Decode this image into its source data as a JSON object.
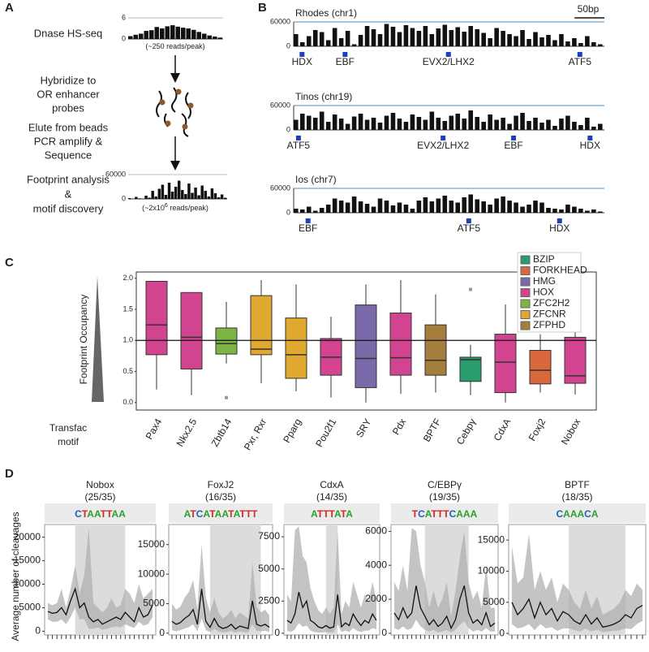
{
  "letters": {
    "a": "A",
    "b": "B",
    "c": "C",
    "d": "D"
  },
  "panel_a": {
    "steps": [
      [
        "Dnase HS-seq"
      ],
      [
        "Hybridize to",
        "OR enhancer",
        "probes"
      ],
      [
        "Elute from beads",
        "PCR amplify &",
        "Sequence"
      ],
      [
        "Footprint analysis",
        "&",
        "motif discovery"
      ]
    ],
    "tracks": [
      {
        "ylim": [
          0,
          6
        ],
        "yticks": [
          0,
          6
        ],
        "values": [
          0.8,
          1.2,
          1.5,
          2.3,
          2.5,
          3.4,
          3.0,
          3.6,
          3.9,
          3.5,
          3.2,
          3.0,
          2.6,
          2.0,
          1.5,
          1.0,
          0.7,
          0.4
        ],
        "caption": {
          "text": "(~250 reads/peak)"
        }
      },
      {
        "ylim": [
          0,
          60000
        ],
        "yticks": [
          0,
          60000
        ],
        "values": [
          2000,
          0,
          5000,
          1500,
          0,
          8000,
          3000,
          20000,
          6000,
          25000,
          35000,
          10000,
          40000,
          18000,
          30000,
          45000,
          22000,
          12000,
          38000,
          15000,
          28000,
          9000,
          33000,
          20000,
          6000,
          26000,
          14000,
          4000,
          11000,
          3000
        ],
        "caption": {
          "text": "(~2x10",
          "sup": "6",
          "tail": " reads/peak)"
        }
      }
    ]
  },
  "panel_b": {
    "ylim": [
      0,
      60000
    ],
    "yticks": [
      0,
      60000
    ],
    "xlim": [
      0,
      520
    ],
    "scalebar": {
      "value": 50,
      "label": "50bp"
    },
    "tracks": [
      {
        "title": "Rhodes (chr1)",
        "values": [
          30000,
          10000,
          25000,
          40000,
          35000,
          15000,
          45000,
          20000,
          38000,
          5000,
          28000,
          50000,
          42000,
          30000,
          55000,
          48000,
          35000,
          52000,
          45000,
          38000,
          50000,
          30000,
          44000,
          53000,
          40000,
          47000,
          36000,
          50000,
          42000,
          33000,
          20000,
          45000,
          38000,
          30000,
          25000,
          40000,
          18000,
          35000,
          22000,
          28000,
          15000,
          30000,
          12000,
          20000,
          8000,
          25000,
          10000,
          5000
        ],
        "motifs": [
          {
            "name": "HDX",
            "pos": 14
          },
          {
            "name": "EBF",
            "pos": 86
          },
          {
            "name": "EVX2/LHX2",
            "pos": 259
          },
          {
            "name": "ATF5",
            "pos": 479
          }
        ]
      },
      {
        "title": "Tinos (chr19)",
        "values": [
          25000,
          40000,
          35000,
          30000,
          45000,
          20000,
          38000,
          28000,
          15000,
          33000,
          40000,
          25000,
          30000,
          18000,
          35000,
          42000,
          28000,
          20000,
          38000,
          32000,
          25000,
          45000,
          30000,
          22000,
          35000,
          40000,
          28000,
          48000,
          32000,
          20000,
          38000,
          25000,
          30000,
          15000,
          35000,
          42000,
          22000,
          30000,
          18000,
          25000,
          10000,
          28000,
          35000,
          20000,
          12000,
          30000,
          8000,
          15000
        ],
        "motifs": [
          {
            "name": "ATF5",
            "pos": 8
          },
          {
            "name": "EVX2/LHX2",
            "pos": 250
          },
          {
            "name": "EBF",
            "pos": 368
          },
          {
            "name": "HDX",
            "pos": 496
          }
        ]
      },
      {
        "title": "Ios (chr7)",
        "values": [
          10000,
          8000,
          15000,
          5000,
          12000,
          20000,
          35000,
          30000,
          25000,
          40000,
          28000,
          22000,
          15000,
          35000,
          30000,
          18000,
          25000,
          20000,
          10000,
          30000,
          38000,
          28000,
          35000,
          42000,
          30000,
          25000,
          38000,
          45000,
          33000,
          28000,
          20000,
          35000,
          40000,
          30000,
          25000,
          15000,
          20000,
          30000,
          25000,
          12000,
          10000,
          8000,
          20000,
          15000,
          10000,
          5000,
          8000,
          3000
        ],
        "motifs": [
          {
            "name": "EBF",
            "pos": 24
          },
          {
            "name": "ATF5",
            "pos": 293
          },
          {
            "name": "HDX",
            "pos": 445
          }
        ]
      }
    ]
  },
  "panel_d": {
    "ylabel": "Average number of cleavages"
  },
  "chart_data": [
    {
      "type": "box",
      "ylabel": "Footprint Occupancy",
      "xlabel": [
        "Transfac",
        "motif"
      ],
      "ylim": [
        -0.12,
        2.1
      ],
      "yticks": [
        {
          "value": 0,
          "label": "0.0"
        },
        {
          "value": 0.5,
          "label": "0.5"
        },
        {
          "value": 1,
          "label": "1.0"
        },
        {
          "value": 1.5,
          "label": "1.5"
        },
        {
          "value": 2,
          "label": "2.0"
        }
      ],
      "hline": 1.0,
      "boxes": [
        {
          "name": "Pax4",
          "color": "#d2448f",
          "min": 0.21,
          "q1": 0.77,
          "median": 1.25,
          "q3": 1.95,
          "max": 1.95,
          "outliers": []
        },
        {
          "name": "Nkx2.5",
          "color": "#d2448f",
          "min": 0.12,
          "q1": 0.54,
          "median": 1.05,
          "q3": 1.77,
          "max": 1.77,
          "outliers": []
        },
        {
          "name": "Zbtb14",
          "color": "#7db544",
          "min": 0.63,
          "q1": 0.78,
          "median": 0.95,
          "q3": 1.2,
          "max": 1.62,
          "outliers": [
            0.08
          ]
        },
        {
          "name": "Pxr, Rxr",
          "color": "#e0a82e",
          "min": 0.31,
          "q1": 0.77,
          "median": 0.86,
          "q3": 1.72,
          "max": 1.97,
          "outliers": []
        },
        {
          "name": "Pparg",
          "color": "#e0a82e",
          "min": 0.18,
          "q1": 0.39,
          "median": 0.77,
          "q3": 1.36,
          "max": 1.9,
          "outliers": []
        },
        {
          "name": "Pou2f1",
          "color": "#d2448f",
          "min": 0.08,
          "q1": 0.44,
          "median": 0.73,
          "q3": 1.03,
          "max": 1.38,
          "outliers": []
        },
        {
          "name": "SRY",
          "color": "#7a6aaa",
          "min": 0.0,
          "q1": 0.24,
          "median": 0.71,
          "q3": 1.57,
          "max": 1.9,
          "outliers": []
        },
        {
          "name": "Pdx",
          "color": "#d2448f",
          "min": 0.14,
          "q1": 0.44,
          "median": 0.72,
          "q3": 1.44,
          "max": 1.97,
          "outliers": []
        },
        {
          "name": "BPTF",
          "color": "#a57d3c",
          "min": 0.16,
          "q1": 0.44,
          "median": 0.68,
          "q3": 1.25,
          "max": 1.74,
          "outliers": []
        },
        {
          "name": "Cebpγ",
          "color": "#2b9c6e",
          "min": 0.12,
          "q1": 0.34,
          "median": 0.69,
          "q3": 0.73,
          "max": 0.93,
          "outliers": [
            1.82
          ]
        },
        {
          "name": "CdxA",
          "color": "#d2448f",
          "min": 0.0,
          "q1": 0.16,
          "median": 0.65,
          "q3": 1.1,
          "max": 1.58,
          "outliers": []
        },
        {
          "name": "Foxj2",
          "color": "#d9683c",
          "min": 0.16,
          "q1": 0.3,
          "median": 0.52,
          "q3": 0.84,
          "max": 1.1,
          "outliers": []
        },
        {
          "name": "Nobox",
          "color": "#d2448f",
          "min": 0.13,
          "q1": 0.31,
          "median": 0.43,
          "q3": 1.05,
          "max": 1.6,
          "outliers": []
        }
      ],
      "legend": [
        {
          "name": "BZIP",
          "color": "#2b9c6e"
        },
        {
          "name": "FORKHEAD",
          "color": "#d9683c"
        },
        {
          "name": "HMG",
          "color": "#7a6aaa"
        },
        {
          "name": "HOX",
          "color": "#d2448f"
        },
        {
          "name": "ZFC2H2",
          "color": "#7db544"
        },
        {
          "name": "ZFCNR",
          "color": "#e0a82e"
        },
        {
          "name": "ZFPHD",
          "color": "#a57d3c"
        }
      ]
    },
    {
      "type": "line",
      "title": "Nobox",
      "subtitle": "(25/35)",
      "logo": "CTAATTAA",
      "ylim": [
        -800,
        22700
      ],
      "yticks": [
        0,
        5000,
        10000,
        15000,
        20000
      ],
      "highlight": [
        6,
        17
      ],
      "color": "#111111",
      "band_color": "#b0b0b0",
      "values": [
        4200,
        3800,
        4000,
        5000,
        3500,
        6500,
        9000,
        5000,
        6000,
        3000,
        2000,
        2500,
        1500,
        2000,
        2500,
        3000,
        2500,
        4000,
        3000,
        2000,
        5000,
        3000,
        3500,
        5500
      ],
      "upper": [
        6000,
        5500,
        6000,
        9000,
        5000,
        9000,
        14000,
        8000,
        12000,
        22000,
        6000,
        5000,
        4000,
        5000,
        7000,
        5000,
        5500,
        9000,
        8000,
        6000,
        10000,
        7000,
        8000,
        9000
      ],
      "lower": [
        2500,
        2000,
        2000,
        2500,
        1500,
        3000,
        5000,
        2500,
        2500,
        500,
        500,
        800,
        300,
        500,
        800,
        1000,
        800,
        1500,
        1000,
        700,
        2000,
        1200,
        1500,
        3000
      ]
    },
    {
      "type": "line",
      "title": "FoxJ2",
      "subtitle": "(16/35)",
      "logo": "ATCATAATATTT",
      "ylim": [
        -300,
        18400
      ],
      "yticks": [
        0,
        5000,
        10000,
        15000
      ],
      "highlight": [
        9,
        21
      ],
      "color": "#111111",
      "band_color": "#b0b0b0",
      "values": [
        2000,
        1500,
        1800,
        2500,
        3000,
        4000,
        1500,
        7500,
        2000,
        1000,
        2500,
        1200,
        800,
        1000,
        1500,
        700,
        1200,
        1000,
        800,
        5500,
        1500,
        1200,
        1500,
        1000
      ],
      "upper": [
        5000,
        4000,
        4500,
        6000,
        7000,
        9000,
        4000,
        15000,
        6000,
        3500,
        6000,
        3500,
        2500,
        3000,
        4000,
        2500,
        3500,
        3000,
        2500,
        12000,
        4500,
        3500,
        4000,
        3000
      ],
      "lower": [
        500,
        300,
        500,
        800,
        1000,
        1500,
        300,
        2500,
        500,
        200,
        700,
        300,
        100,
        200,
        400,
        100,
        300,
        200,
        100,
        1500,
        400,
        300,
        400,
        200
      ]
    },
    {
      "type": "line",
      "title": "CdxA",
      "subtitle": "(14/35)",
      "logo": "ATTTATA",
      "ylim": [
        -130,
        8450
      ],
      "yticks": [
        0,
        2500,
        5000,
        7500
      ],
      "highlight": [
        10,
        13
      ],
      "color": "#111111",
      "band_color": "#b0b0b0",
      "values": [
        1000,
        800,
        1500,
        3200,
        2000,
        2500,
        1000,
        800,
        500,
        400,
        600,
        400,
        500,
        3000,
        500,
        800,
        600,
        1500,
        1000,
        600,
        1000,
        800,
        1500,
        1000
      ],
      "upper": [
        3000,
        2500,
        8000,
        8300,
        6000,
        5500,
        3500,
        2500,
        1800,
        1500,
        2000,
        1500,
        2000,
        8000,
        1500,
        2500,
        2000,
        4000,
        3000,
        2000,
        3000,
        2500,
        4000,
        2500
      ],
      "lower": [
        200,
        100,
        300,
        800,
        500,
        600,
        200,
        100,
        50,
        50,
        100,
        50,
        100,
        700,
        100,
        200,
        100,
        400,
        200,
        100,
        200,
        200,
        400,
        300
      ]
    },
    {
      "type": "line",
      "title": "C/EBPγ",
      "subtitle": "(19/35)",
      "logo": "TCATTTCAAA",
      "ylim": [
        -100,
        6400
      ],
      "yticks": [
        0,
        2000,
        4000,
        6000
      ],
      "highlight": [
        7,
        17
      ],
      "color": "#111111",
      "band_color": "#b0b0b0",
      "values": [
        1200,
        800,
        1500,
        900,
        1200,
        2800,
        1500,
        1000,
        500,
        800,
        400,
        600,
        1000,
        300,
        800,
        2000,
        2800,
        1200,
        600,
        800,
        500,
        1200,
        400,
        600
      ],
      "upper": [
        3000,
        2500,
        4000,
        2500,
        6200,
        6000,
        4000,
        3000,
        1500,
        2500,
        1500,
        2000,
        3000,
        1000,
        2500,
        4500,
        6000,
        3000,
        2000,
        2500,
        1500,
        4000,
        1500,
        1500
      ],
      "lower": [
        300,
        200,
        400,
        200,
        300,
        800,
        400,
        200,
        100,
        200,
        50,
        100,
        200,
        50,
        200,
        500,
        700,
        300,
        100,
        200,
        100,
        300,
        100,
        100
      ]
    },
    {
      "type": "line",
      "title": "BPTF",
      "subtitle": "(18/35)",
      "logo": "CAAACA",
      "ylim": [
        -250,
        17500
      ],
      "yticks": [
        0,
        5000,
        10000,
        15000
      ],
      "highlight": [
        10,
        20
      ],
      "color": "#111111",
      "band_color": "#b0b0b0",
      "values": [
        5000,
        3000,
        4000,
        5500,
        2500,
        5000,
        3000,
        4000,
        2000,
        3500,
        3000,
        2000,
        1500,
        3000,
        1500,
        2500,
        1000,
        1200,
        1500,
        2000,
        3000,
        2500,
        4000,
        4500
      ],
      "upper": [
        14000,
        8000,
        9000,
        16000,
        7000,
        10000,
        7000,
        9000,
        5000,
        8000,
        7000,
        5000,
        4000,
        7000,
        4000,
        6000,
        3000,
        3500,
        4000,
        5000,
        7000,
        6000,
        8000,
        7000
      ],
      "lower": [
        1500,
        800,
        1000,
        1500,
        500,
        1500,
        800,
        1000,
        400,
        800,
        800,
        500,
        300,
        800,
        300,
        600,
        200,
        300,
        400,
        500,
        800,
        700,
        1500,
        2000
      ]
    }
  ]
}
